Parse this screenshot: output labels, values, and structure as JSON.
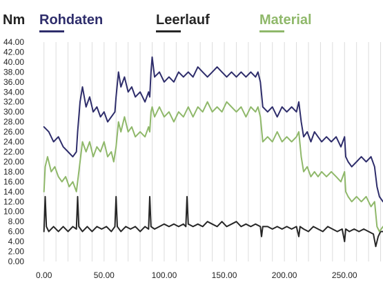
{
  "chart_data": {
    "type": "line",
    "title": "",
    "unit_label": "Nm",
    "xlabel": "",
    "ylabel": "",
    "xlim": [
      -5,
      282
    ],
    "ylim": [
      0,
      44
    ],
    "grid": "vertical",
    "legend_position": "top",
    "y_ticks": [
      "0.00",
      "2.00",
      "4.00",
      "6.00",
      "8.00",
      "10.00",
      "12.00",
      "14.00",
      "16.00",
      "18.00",
      "20.00",
      "22.00",
      "24.00",
      "26.00",
      "28.00",
      "30.00",
      "32.00",
      "34.00",
      "36.00",
      "38.00",
      "40.00",
      "42.00",
      "44.00"
    ],
    "x_ticks": [
      "0.00",
      "50.00",
      "100.00",
      "150.00",
      "200.00",
      "250.00"
    ],
    "series": [
      {
        "name": "Rohdaten",
        "color": "#2e2d6b",
        "points": [
          [
            0,
            27
          ],
          [
            4,
            26
          ],
          [
            8,
            24
          ],
          [
            12,
            25
          ],
          [
            16,
            23
          ],
          [
            20,
            22
          ],
          [
            24,
            21
          ],
          [
            27,
            22
          ],
          [
            28,
            26
          ],
          [
            30,
            32
          ],
          [
            32,
            35
          ],
          [
            35,
            31
          ],
          [
            38,
            33
          ],
          [
            41,
            30
          ],
          [
            44,
            31
          ],
          [
            47,
            29
          ],
          [
            50,
            30
          ],
          [
            53,
            28
          ],
          [
            56,
            29
          ],
          [
            59,
            30
          ],
          [
            60,
            33
          ],
          [
            62,
            38
          ],
          [
            64,
            35
          ],
          [
            67,
            37
          ],
          [
            70,
            34
          ],
          [
            73,
            35
          ],
          [
            76,
            33
          ],
          [
            80,
            34
          ],
          [
            84,
            32
          ],
          [
            87,
            34
          ],
          [
            88,
            33
          ],
          [
            89,
            38
          ],
          [
            90,
            41
          ],
          [
            92,
            37
          ],
          [
            96,
            38
          ],
          [
            100,
            36
          ],
          [
            104,
            37
          ],
          [
            108,
            36
          ],
          [
            112,
            38
          ],
          [
            116,
            37
          ],
          [
            120,
            38
          ],
          [
            124,
            37
          ],
          [
            128,
            39
          ],
          [
            132,
            38
          ],
          [
            136,
            37
          ],
          [
            140,
            38
          ],
          [
            144,
            39
          ],
          [
            148,
            38
          ],
          [
            152,
            37
          ],
          [
            156,
            38
          ],
          [
            160,
            37
          ],
          [
            164,
            38
          ],
          [
            168,
            37
          ],
          [
            172,
            38
          ],
          [
            176,
            37
          ],
          [
            178,
            38
          ],
          [
            180,
            36
          ],
          [
            182,
            31
          ],
          [
            186,
            30
          ],
          [
            190,
            31
          ],
          [
            194,
            29
          ],
          [
            198,
            31
          ],
          [
            202,
            30
          ],
          [
            206,
            31
          ],
          [
            210,
            30
          ],
          [
            212,
            32
          ],
          [
            214,
            28
          ],
          [
            216,
            25
          ],
          [
            219,
            26
          ],
          [
            222,
            24
          ],
          [
            225,
            26
          ],
          [
            228,
            25
          ],
          [
            231,
            24
          ],
          [
            235,
            25
          ],
          [
            239,
            24
          ],
          [
            243,
            25
          ],
          [
            247,
            23
          ],
          [
            250,
            25
          ],
          [
            251,
            21
          ],
          [
            253,
            20
          ],
          [
            256,
            19
          ],
          [
            260,
            20
          ],
          [
            264,
            21
          ],
          [
            268,
            20
          ],
          [
            272,
            21
          ],
          [
            275,
            19
          ],
          [
            277,
            15
          ],
          [
            279,
            13
          ],
          [
            282,
            12
          ]
        ]
      },
      {
        "name": "Leerlauf",
        "color": "#262626",
        "points": [
          [
            0,
            6
          ],
          [
            1,
            13
          ],
          [
            2,
            7
          ],
          [
            4,
            6
          ],
          [
            8,
            7
          ],
          [
            12,
            6
          ],
          [
            16,
            7
          ],
          [
            20,
            6
          ],
          [
            24,
            7
          ],
          [
            27,
            6.5
          ],
          [
            28,
            13
          ],
          [
            29,
            7
          ],
          [
            32,
            6
          ],
          [
            36,
            7
          ],
          [
            40,
            6
          ],
          [
            44,
            7
          ],
          [
            48,
            6.5
          ],
          [
            52,
            7
          ],
          [
            56,
            6
          ],
          [
            59,
            7
          ],
          [
            60,
            13
          ],
          [
            61,
            7
          ],
          [
            64,
            6
          ],
          [
            68,
            7
          ],
          [
            72,
            6.5
          ],
          [
            76,
            7
          ],
          [
            80,
            6
          ],
          [
            84,
            7
          ],
          [
            87,
            6.5
          ],
          [
            88,
            13
          ],
          [
            89,
            7
          ],
          [
            92,
            6.5
          ],
          [
            96,
            7
          ],
          [
            100,
            7.5
          ],
          [
            104,
            7
          ],
          [
            108,
            7.5
          ],
          [
            112,
            7
          ],
          [
            116,
            7.5
          ],
          [
            118,
            7
          ],
          [
            119,
            13
          ],
          [
            120,
            7.5
          ],
          [
            124,
            7
          ],
          [
            128,
            7.5
          ],
          [
            132,
            7
          ],
          [
            136,
            8
          ],
          [
            140,
            7.5
          ],
          [
            144,
            7
          ],
          [
            148,
            8
          ],
          [
            152,
            7
          ],
          [
            156,
            7.5
          ],
          [
            160,
            8
          ],
          [
            164,
            7
          ],
          [
            168,
            7.5
          ],
          [
            172,
            7
          ],
          [
            176,
            7.5
          ],
          [
            180,
            7
          ],
          [
            181,
            5
          ],
          [
            182,
            7
          ],
          [
            186,
            7
          ],
          [
            190,
            6.5
          ],
          [
            194,
            7
          ],
          [
            198,
            6.5
          ],
          [
            202,
            7
          ],
          [
            206,
            6.5
          ],
          [
            210,
            7
          ],
          [
            212,
            5
          ],
          [
            213,
            7
          ],
          [
            216,
            6.5
          ],
          [
            220,
            6
          ],
          [
            224,
            7
          ],
          [
            228,
            6.5
          ],
          [
            232,
            6
          ],
          [
            236,
            7
          ],
          [
            240,
            6.5
          ],
          [
            244,
            6
          ],
          [
            248,
            6.5
          ],
          [
            250,
            4
          ],
          [
            251,
            6.5
          ],
          [
            254,
            6
          ],
          [
            258,
            6.5
          ],
          [
            262,
            6
          ],
          [
            266,
            6.5
          ],
          [
            270,
            6
          ],
          [
            274,
            5.5
          ],
          [
            276,
            3
          ],
          [
            278,
            5
          ],
          [
            280,
            6
          ],
          [
            282,
            6
          ]
        ]
      },
      {
        "name": "Material",
        "color": "#8fb86a",
        "points": [
          [
            0,
            14
          ],
          [
            1,
            19
          ],
          [
            3,
            21
          ],
          [
            6,
            18
          ],
          [
            9,
            19
          ],
          [
            12,
            17
          ],
          [
            15,
            16
          ],
          [
            18,
            17
          ],
          [
            21,
            15
          ],
          [
            24,
            16
          ],
          [
            27,
            14
          ],
          [
            28,
            16
          ],
          [
            30,
            20
          ],
          [
            32,
            24
          ],
          [
            35,
            22
          ],
          [
            38,
            24
          ],
          [
            41,
            21
          ],
          [
            44,
            23
          ],
          [
            47,
            22
          ],
          [
            50,
            24
          ],
          [
            53,
            21
          ],
          [
            56,
            22
          ],
          [
            58,
            20
          ],
          [
            60,
            23
          ],
          [
            62,
            28
          ],
          [
            64,
            26
          ],
          [
            67,
            29
          ],
          [
            70,
            26
          ],
          [
            73,
            27
          ],
          [
            76,
            25
          ],
          [
            80,
            26
          ],
          [
            84,
            25
          ],
          [
            87,
            27
          ],
          [
            88,
            26
          ],
          [
            89,
            30
          ],
          [
            90,
            31
          ],
          [
            92,
            29
          ],
          [
            96,
            31
          ],
          [
            100,
            29
          ],
          [
            104,
            30
          ],
          [
            108,
            28
          ],
          [
            112,
            30
          ],
          [
            116,
            29
          ],
          [
            120,
            31
          ],
          [
            124,
            29
          ],
          [
            128,
            31
          ],
          [
            132,
            30
          ],
          [
            136,
            32
          ],
          [
            140,
            30
          ],
          [
            144,
            31
          ],
          [
            148,
            30
          ],
          [
            152,
            32
          ],
          [
            156,
            31
          ],
          [
            160,
            30
          ],
          [
            164,
            31
          ],
          [
            168,
            29
          ],
          [
            172,
            31
          ],
          [
            176,
            30
          ],
          [
            178,
            31
          ],
          [
            180,
            29
          ],
          [
            182,
            24
          ],
          [
            186,
            25
          ],
          [
            190,
            24
          ],
          [
            194,
            26
          ],
          [
            198,
            24
          ],
          [
            202,
            25
          ],
          [
            206,
            24
          ],
          [
            210,
            25
          ],
          [
            212,
            26
          ],
          [
            214,
            21
          ],
          [
            216,
            18
          ],
          [
            219,
            19
          ],
          [
            222,
            17
          ],
          [
            225,
            18
          ],
          [
            228,
            17
          ],
          [
            231,
            18
          ],
          [
            235,
            17
          ],
          [
            239,
            18
          ],
          [
            243,
            17
          ],
          [
            247,
            16
          ],
          [
            250,
            18
          ],
          [
            251,
            14
          ],
          [
            253,
            13
          ],
          [
            256,
            12
          ],
          [
            260,
            13
          ],
          [
            264,
            12
          ],
          [
            268,
            13
          ],
          [
            272,
            11
          ],
          [
            275,
            12
          ],
          [
            277,
            7
          ],
          [
            279,
            6
          ],
          [
            282,
            7
          ]
        ]
      }
    ]
  }
}
